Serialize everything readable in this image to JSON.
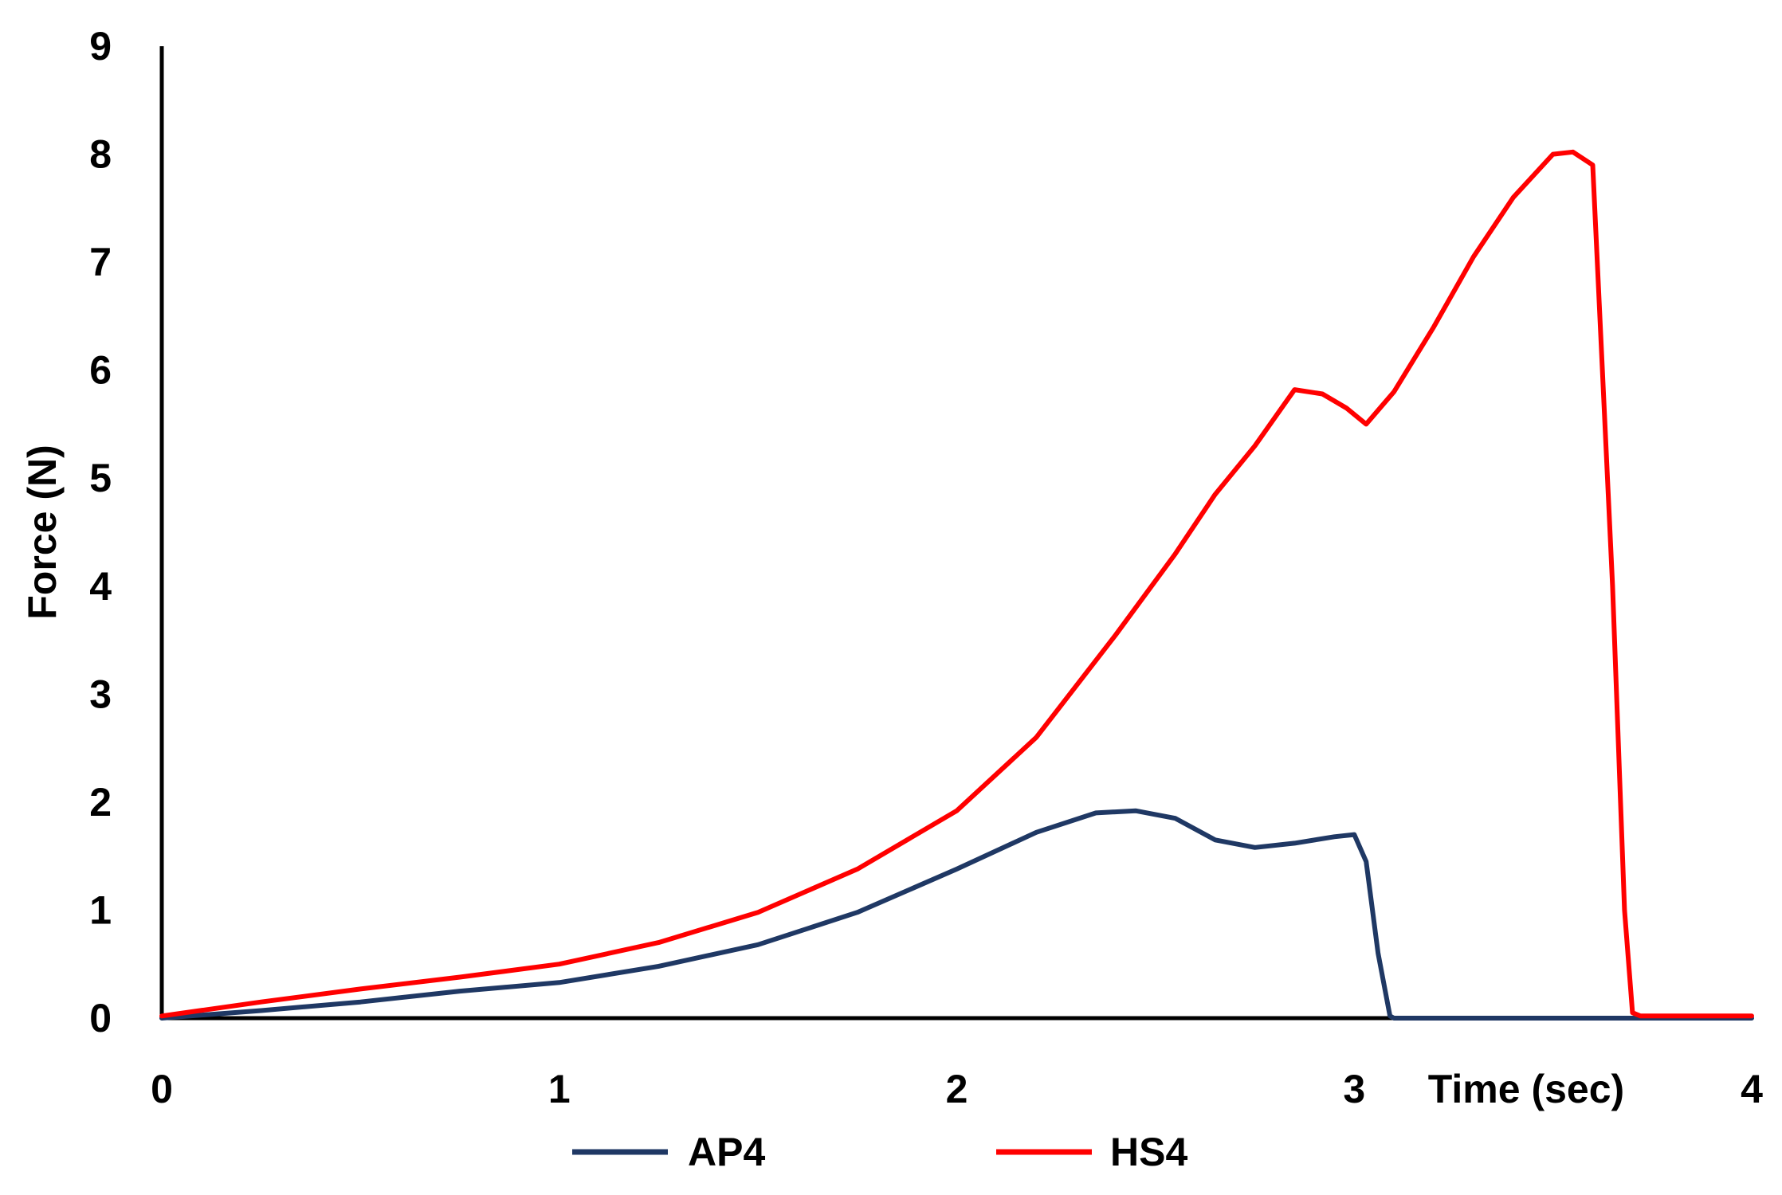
{
  "chart_data": {
    "type": "line",
    "xlabel": "Time (sec)",
    "ylabel": "Force (N)",
    "xlim": [
      0,
      4
    ],
    "ylim": [
      0,
      9
    ],
    "x_ticks": [
      0,
      1,
      2,
      3,
      4
    ],
    "y_ticks": [
      0,
      1,
      2,
      3,
      4,
      5,
      6,
      7,
      8,
      9
    ],
    "grid": false,
    "legend_position": "bottom",
    "series": [
      {
        "name": "AP4",
        "color": "#1f3864",
        "x": [
          0,
          0.25,
          0.5,
          0.75,
          1.0,
          1.25,
          1.5,
          1.75,
          2.0,
          2.2,
          2.35,
          2.45,
          2.55,
          2.65,
          2.75,
          2.85,
          2.95,
          3.0,
          3.03,
          3.06,
          3.09,
          3.1,
          3.3,
          3.5,
          3.7,
          4.0
        ],
        "y": [
          0,
          0.07,
          0.15,
          0.25,
          0.33,
          0.48,
          0.68,
          0.98,
          1.38,
          1.72,
          1.9,
          1.92,
          1.85,
          1.65,
          1.58,
          1.62,
          1.68,
          1.7,
          1.45,
          0.6,
          0.02,
          0,
          0,
          0,
          0,
          0
        ]
      },
      {
        "name": "HS4",
        "color": "#ff0000",
        "x": [
          0,
          0.25,
          0.5,
          0.75,
          1.0,
          1.25,
          1.5,
          1.75,
          2.0,
          2.2,
          2.4,
          2.55,
          2.65,
          2.75,
          2.85,
          2.92,
          2.98,
          3.03,
          3.1,
          3.2,
          3.3,
          3.4,
          3.5,
          3.55,
          3.6,
          3.65,
          3.68,
          3.7,
          3.72,
          3.8,
          4.0
        ],
        "y": [
          0.02,
          0.15,
          0.27,
          0.38,
          0.5,
          0.7,
          0.98,
          1.38,
          1.92,
          2.6,
          3.55,
          4.3,
          4.85,
          5.3,
          5.82,
          5.78,
          5.65,
          5.5,
          5.8,
          6.4,
          7.05,
          7.6,
          8.0,
          8.02,
          7.9,
          4.0,
          1.0,
          0.05,
          0.02,
          0.02,
          0.02
        ]
      }
    ]
  }
}
